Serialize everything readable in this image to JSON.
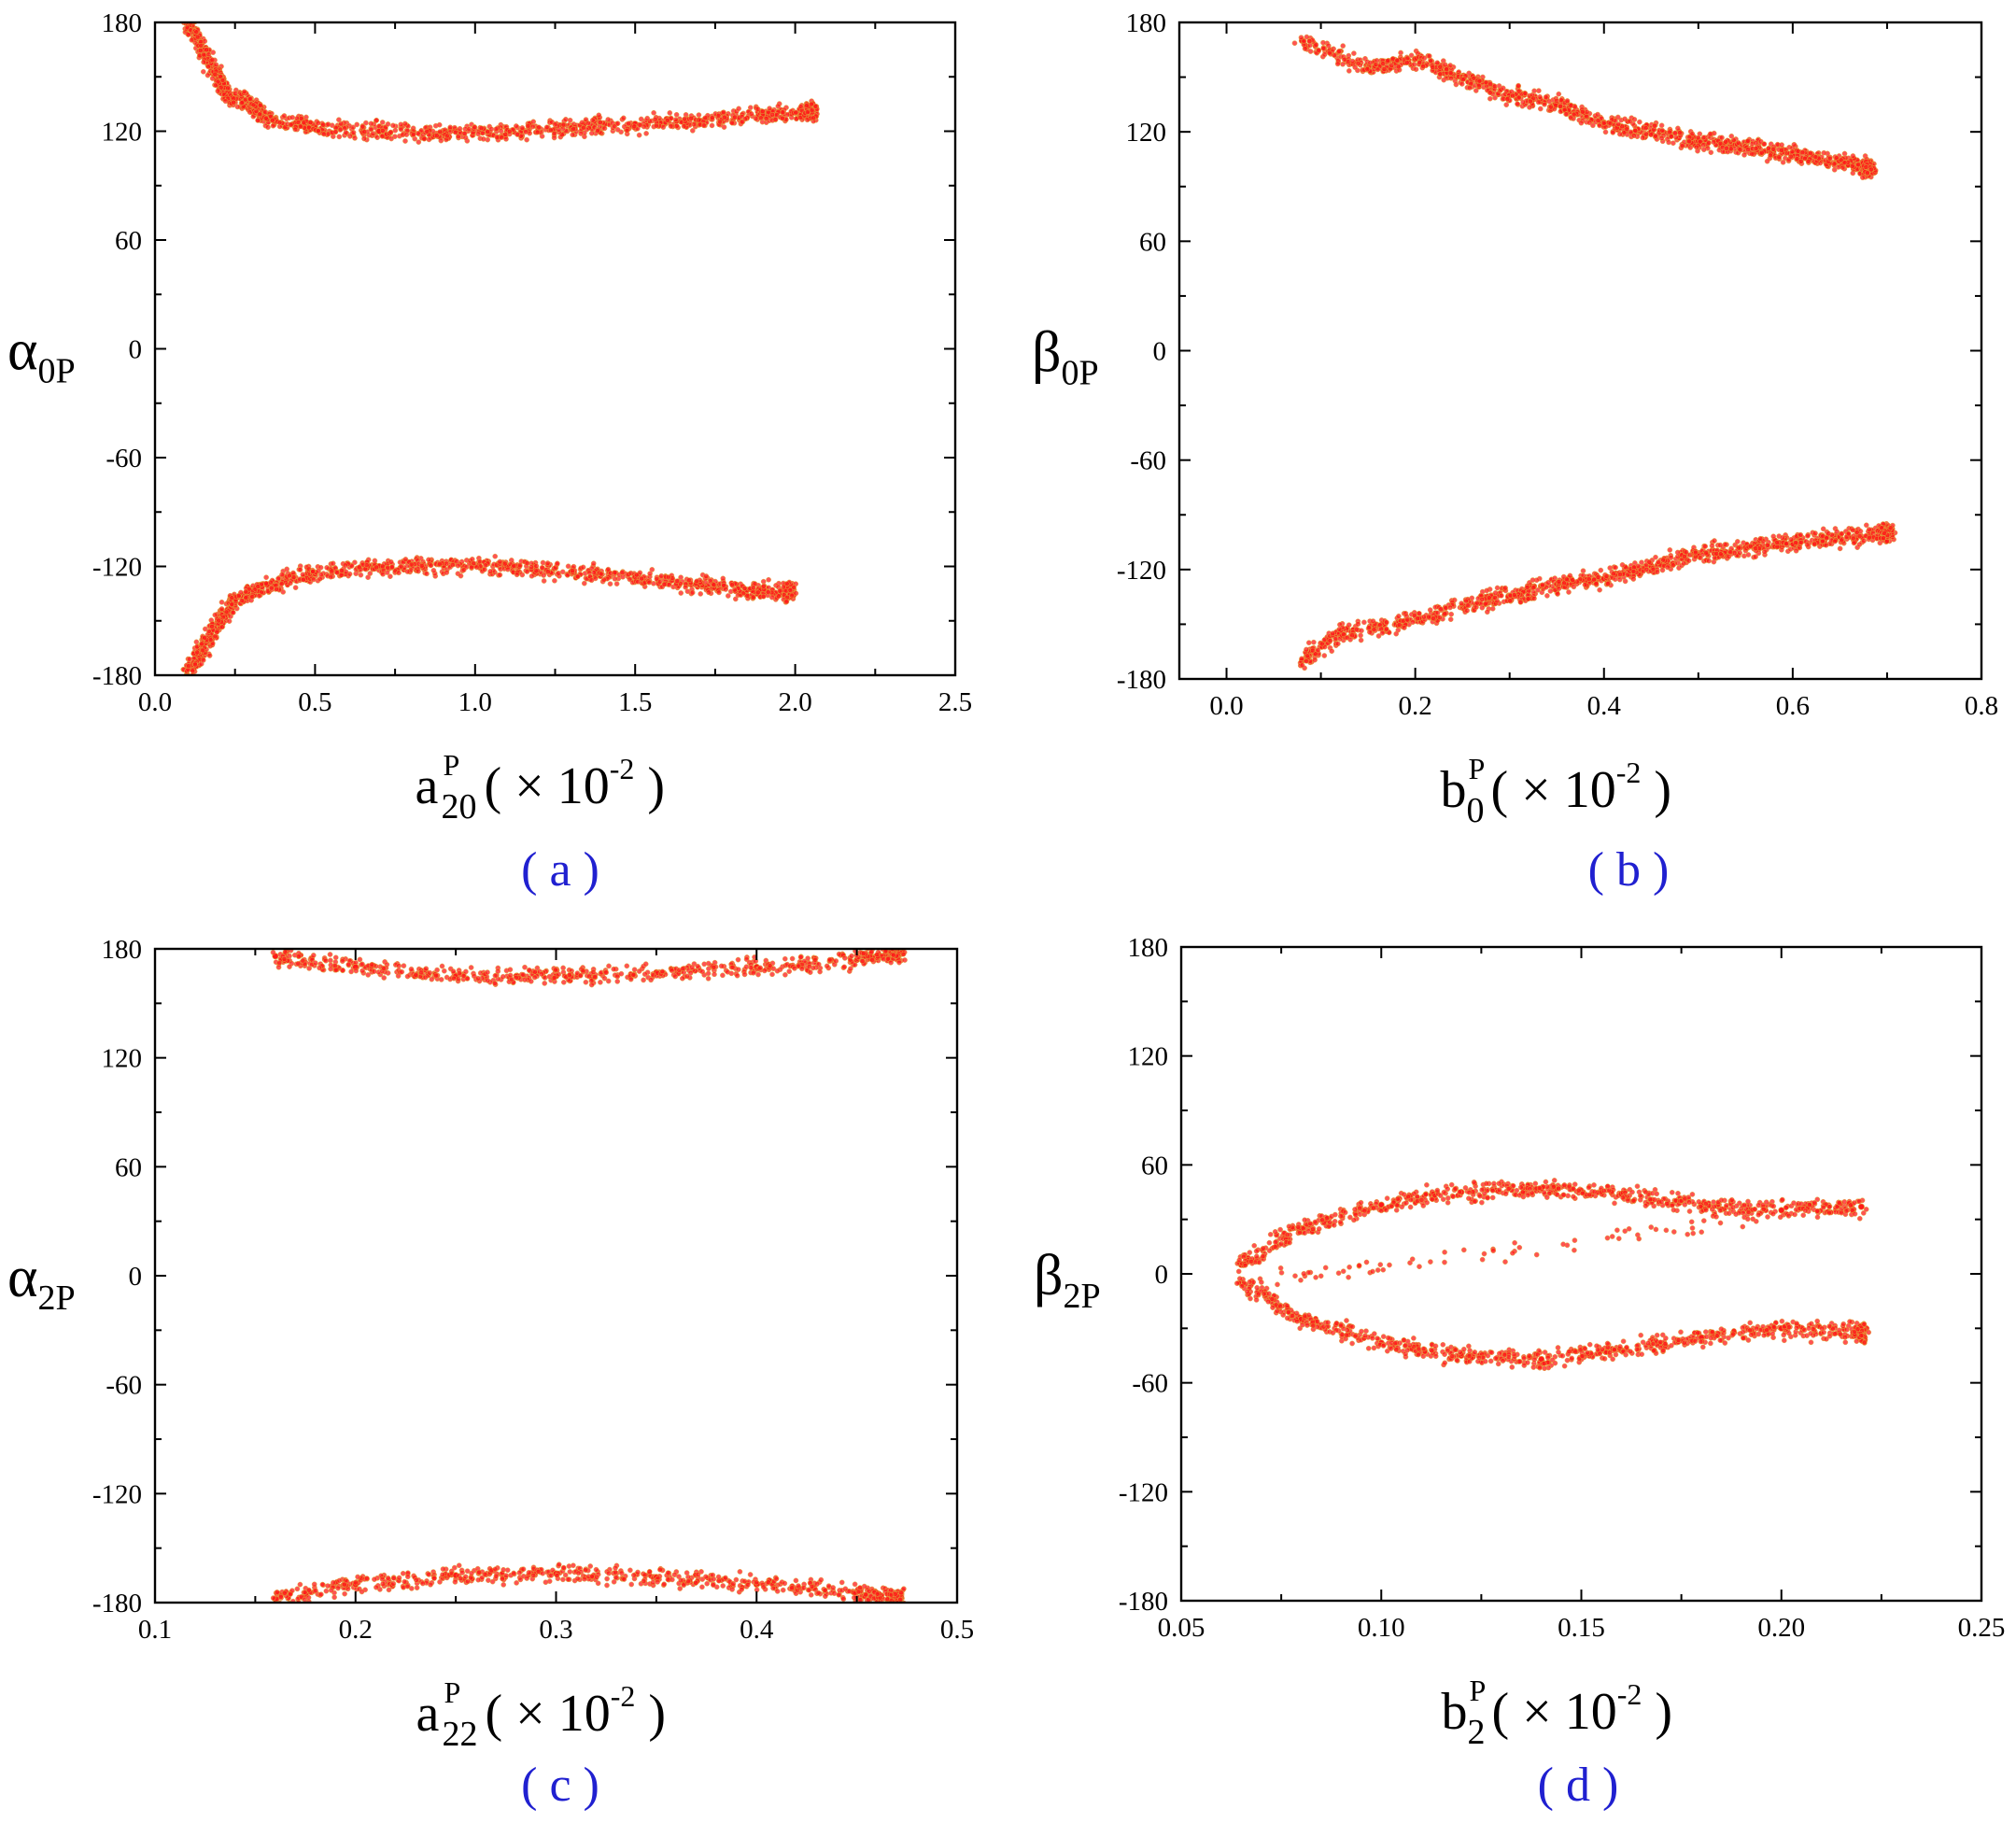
{
  "colors": {
    "points": "#ff1a1a",
    "point_edge": "#e0b040",
    "axis": "#000000",
    "panel_label": "#2020d0"
  },
  "chart_data": [
    {
      "type": "scatter",
      "panel_label": "( a )",
      "ylabel": {
        "symbol": "α",
        "sub": "0P"
      },
      "xlabel": {
        "base": "a",
        "sup": "P",
        "sub": "20",
        "suffix": " ( × 10",
        "exp": "-2",
        "close": " )"
      },
      "xlim": [
        0.0,
        2.5
      ],
      "ylim": [
        -180,
        180
      ],
      "xticks": [
        "0.0",
        "0.5",
        "1.0",
        "1.5",
        "2.0",
        "2.5"
      ],
      "yticks": [
        "-180",
        "-120",
        "-60",
        "0",
        "60",
        "120",
        "180"
      ],
      "series": [
        {
          "points": [
            [
              0.1,
              180
            ],
            [
              0.15,
              165
            ],
            [
              0.2,
              150
            ],
            [
              0.22,
              140
            ],
            [
              0.3,
              135
            ],
            [
              0.35,
              127
            ],
            [
              0.5,
              122
            ],
            [
              0.7,
              120
            ],
            [
              0.9,
              119
            ],
            [
              1.1,
              120
            ],
            [
              1.3,
              122
            ],
            [
              1.5,
              124
            ],
            [
              1.7,
              126
            ],
            [
              1.9,
              129
            ],
            [
              2.05,
              131
            ]
          ]
        },
        {
          "points": [
            [
              0.1,
              -180
            ],
            [
              0.15,
              -165
            ],
            [
              0.2,
              -150
            ],
            [
              0.25,
              -138
            ],
            [
              0.35,
              -130
            ],
            [
              0.5,
              -124
            ],
            [
              0.7,
              -120
            ],
            [
              0.9,
              -119
            ],
            [
              1.1,
              -120
            ],
            [
              1.3,
              -123
            ],
            [
              1.5,
              -126
            ],
            [
              1.7,
              -130
            ],
            [
              1.85,
              -133
            ],
            [
              1.98,
              -134
            ]
          ]
        }
      ]
    },
    {
      "type": "scatter",
      "panel_label": "( b )",
      "ylabel": {
        "symbol": "β",
        "sub": "0P"
      },
      "xlabel": {
        "base": "b",
        "sup": "P",
        "sub": "0",
        "suffix": " ( × 10",
        "exp": "-2",
        "close": " )"
      },
      "xlim": [
        -0.05,
        0.8
      ],
      "ylim": [
        -180,
        180
      ],
      "xticks": [
        "0.0",
        "0.2",
        "0.4",
        "0.6",
        "0.8"
      ],
      "yticks": [
        "-180",
        "-120",
        "-60",
        "0",
        "60",
        "120",
        "180"
      ],
      "series": [
        {
          "points": [
            [
              0.08,
              170
            ],
            [
              0.15,
              155
            ],
            [
              0.2,
              160
            ],
            [
              0.25,
              150
            ],
            [
              0.3,
              140
            ],
            [
              0.35,
              135
            ],
            [
              0.4,
              125
            ],
            [
              0.45,
              120
            ],
            [
              0.5,
              115
            ],
            [
              0.55,
              112
            ],
            [
              0.6,
              108
            ],
            [
              0.65,
              104
            ],
            [
              0.68,
              100
            ]
          ]
        },
        {
          "points": [
            [
              0.08,
              -170
            ],
            [
              0.12,
              -155
            ],
            [
              0.18,
              -150
            ],
            [
              0.25,
              -140
            ],
            [
              0.3,
              -135
            ],
            [
              0.35,
              -128
            ],
            [
              0.4,
              -125
            ],
            [
              0.45,
              -118
            ],
            [
              0.5,
              -112
            ],
            [
              0.55,
              -108
            ],
            [
              0.6,
              -105
            ],
            [
              0.65,
              -102
            ],
            [
              0.7,
              -100
            ]
          ]
        }
      ]
    },
    {
      "type": "scatter",
      "panel_label": "( c )",
      "ylabel": {
        "symbol": "α",
        "sub": "2P"
      },
      "xlabel": {
        "base": "a",
        "sup": "P",
        "sub": "22",
        "suffix": " ( × 10",
        "exp": "-2",
        "close": " )"
      },
      "xlim": [
        0.1,
        0.5
      ],
      "ylim": [
        -180,
        180
      ],
      "xticks": [
        "0.1",
        "0.2",
        "0.3",
        "0.4",
        "0.5"
      ],
      "yticks": [
        "-180",
        "-120",
        "-60",
        "0",
        "60",
        "120",
        "180"
      ],
      "series": [
        {
          "points": [
            [
              0.16,
              176
            ],
            [
              0.2,
              170
            ],
            [
              0.25,
              165
            ],
            [
              0.3,
              165
            ],
            [
              0.35,
              167
            ],
            [
              0.4,
              170
            ],
            [
              0.45,
              174
            ],
            [
              0.47,
              178
            ]
          ]
        },
        {
          "points": [
            [
              0.16,
              -178
            ],
            [
              0.2,
              -170
            ],
            [
              0.25,
              -165
            ],
            [
              0.3,
              -164
            ],
            [
              0.35,
              -166
            ],
            [
              0.4,
              -170
            ],
            [
              0.45,
              -174
            ],
            [
              0.47,
              -178
            ]
          ]
        }
      ]
    },
    {
      "type": "scatter",
      "panel_label": "( d )",
      "ylabel": {
        "symbol": "β",
        "sub": "2P"
      },
      "xlabel": {
        "base": "b",
        "sup": "P",
        "sub": "2",
        "suffix": " ( × 10",
        "exp": "-2",
        "close": " )"
      },
      "xlim": [
        0.05,
        0.25
      ],
      "ylim": [
        -180,
        180
      ],
      "xticks": [
        "0.05",
        "0.10",
        "0.15",
        "0.20",
        "0.25"
      ],
      "yticks": [
        "-180",
        "-120",
        "-60",
        "0",
        "60",
        "120",
        "180"
      ],
      "series": [
        {
          "points": [
            [
              0.065,
              5
            ],
            [
              0.08,
              25
            ],
            [
              0.1,
              38
            ],
            [
              0.12,
              45
            ],
            [
              0.14,
              47
            ],
            [
              0.16,
              44
            ],
            [
              0.18,
              38
            ],
            [
              0.2,
              35
            ],
            [
              0.22,
              37
            ],
            [
              0.065,
              -5
            ],
            [
              0.08,
              -25
            ],
            [
              0.1,
              -38
            ],
            [
              0.12,
              -45
            ],
            [
              0.14,
              -47
            ],
            [
              0.16,
              -42
            ],
            [
              0.18,
              -35
            ],
            [
              0.2,
              -30
            ],
            [
              0.22,
              -33
            ]
          ]
        }
      ]
    }
  ]
}
